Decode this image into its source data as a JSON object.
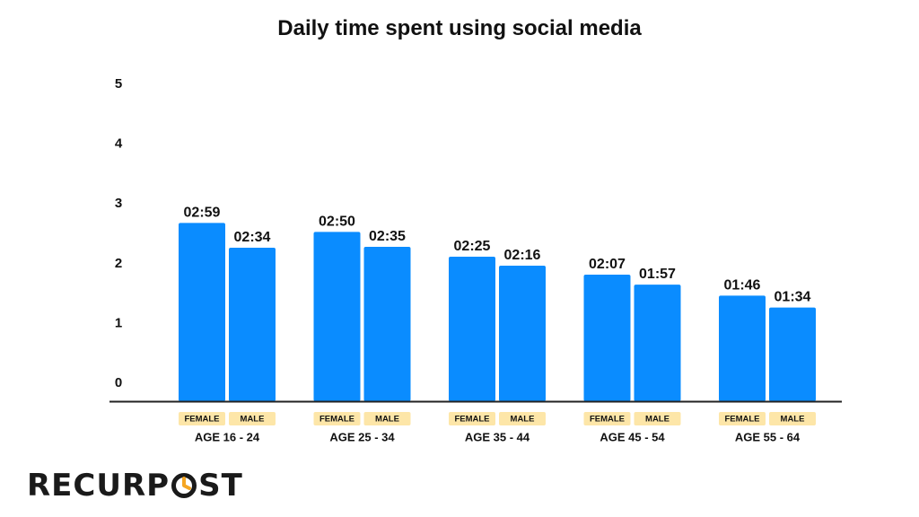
{
  "chart_data": {
    "type": "bar",
    "title": "Daily time spent using social media",
    "categories": [
      "AGE 16 - 24",
      "AGE 25 - 34",
      "AGE 35 - 44",
      "AGE 45 - 54",
      "AGE 55 - 64"
    ],
    "series": [
      {
        "name": "FEMALE",
        "values": [
          2.983,
          2.833,
          2.417,
          2.117,
          1.767
        ],
        "labels": [
          "02:59",
          "02:50",
          "02:25",
          "02:07",
          "01:46"
        ]
      },
      {
        "name": "MALE",
        "values": [
          2.567,
          2.583,
          2.267,
          1.95,
          1.567
        ],
        "labels": [
          "02:34",
          "02:35",
          "02:16",
          "01:57",
          "01:34"
        ]
      }
    ],
    "yticks": [
      0,
      1,
      2,
      3,
      4,
      5
    ],
    "ylim": [
      0,
      5
    ],
    "xlabel": "",
    "ylabel": "",
    "grid": false,
    "colors": {
      "bar": "#0a8cff",
      "tag_bg": "#fde6a8",
      "axis": "#222222",
      "text": "#111111"
    }
  },
  "brand": {
    "logo_text_left": "RECURP",
    "logo_text_right": "ST",
    "logo_accent": "#f5a623"
  }
}
